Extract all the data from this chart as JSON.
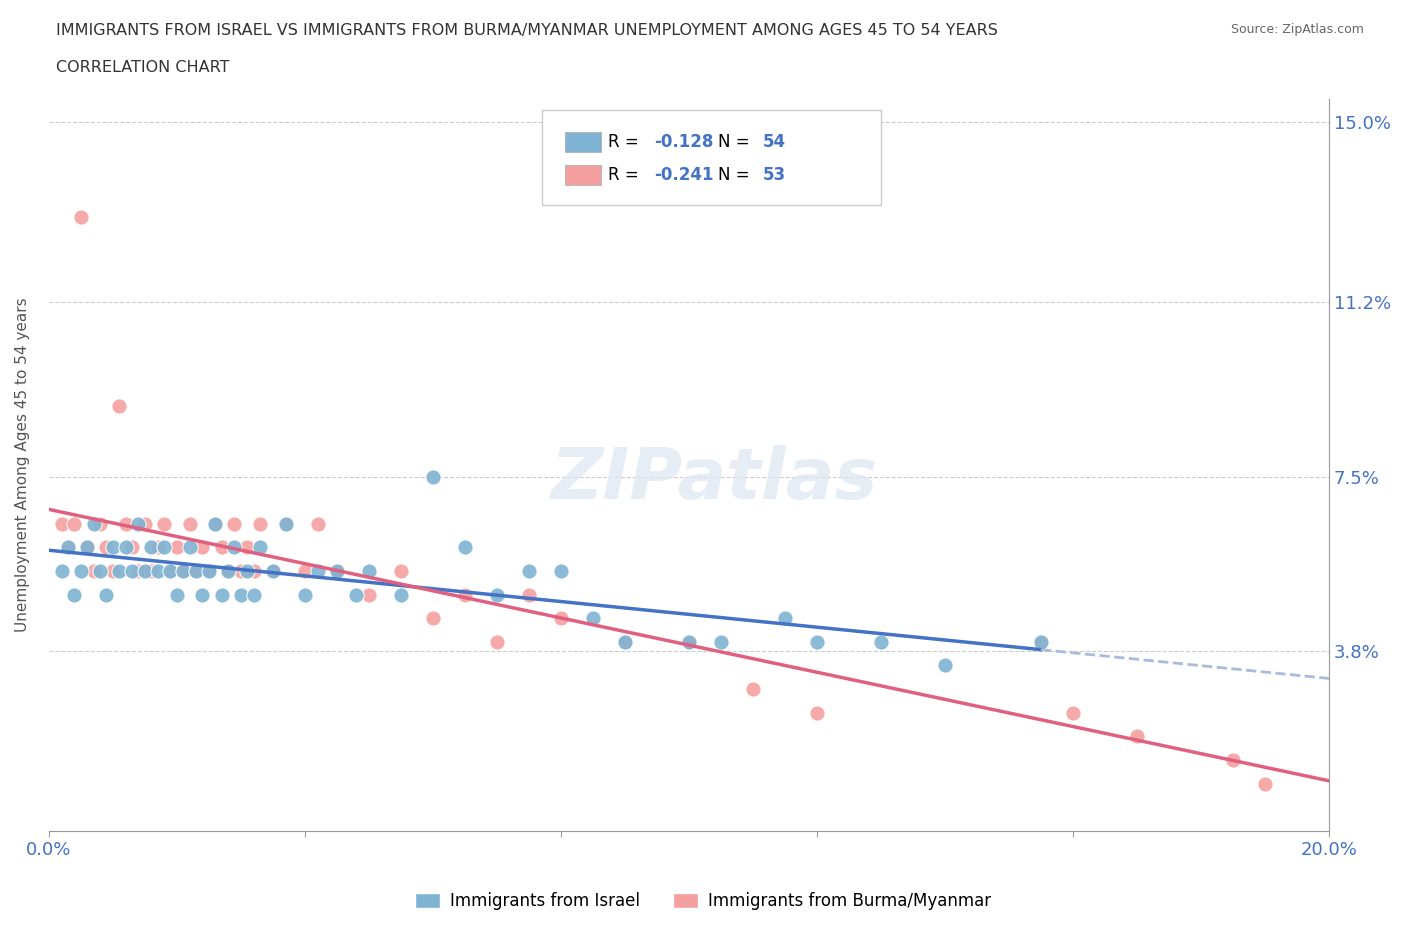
{
  "title_line1": "IMMIGRANTS FROM ISRAEL VS IMMIGRANTS FROM BURMA/MYANMAR UNEMPLOYMENT AMONG AGES 45 TO 54 YEARS",
  "title_line2": "CORRELATION CHART",
  "source_text": "Source: ZipAtlas.com",
  "ylabel": "Unemployment Among Ages 45 to 54 years",
  "xlim": [
    0.0,
    0.2
  ],
  "ylim": [
    0.0,
    0.155
  ],
  "ytick_positions": [
    0.0,
    0.038,
    0.075,
    0.112,
    0.15
  ],
  "ytick_labels": [
    "",
    "3.8%",
    "7.5%",
    "11.2%",
    "15.0%"
  ],
  "color_israel": "#7fb3d3",
  "color_burma": "#f4a0a0",
  "color_israel_line": "#4472c4",
  "color_burma_line": "#e06080",
  "legend_r_israel": "R = -0.128",
  "legend_n_israel": "N = 54",
  "legend_r_burma": "R = -0.241",
  "legend_n_burma": "N = 53",
  "watermark": "ZIPatlas",
  "grid_color": "#cccccc",
  "background_color": "#ffffff",
  "israel_x": [
    0.002,
    0.003,
    0.004,
    0.005,
    0.006,
    0.007,
    0.008,
    0.009,
    0.01,
    0.011,
    0.012,
    0.013,
    0.014,
    0.015,
    0.016,
    0.017,
    0.018,
    0.019,
    0.02,
    0.021,
    0.022,
    0.023,
    0.024,
    0.025,
    0.026,
    0.027,
    0.028,
    0.029,
    0.03,
    0.031,
    0.032,
    0.033,
    0.035,
    0.037,
    0.04,
    0.042,
    0.045,
    0.048,
    0.05,
    0.055,
    0.06,
    0.065,
    0.07,
    0.075,
    0.08,
    0.085,
    0.09,
    0.1,
    0.105,
    0.115,
    0.12,
    0.13,
    0.14,
    0.155
  ],
  "israel_y": [
    0.055,
    0.06,
    0.05,
    0.055,
    0.06,
    0.065,
    0.055,
    0.05,
    0.06,
    0.055,
    0.06,
    0.055,
    0.065,
    0.055,
    0.06,
    0.055,
    0.06,
    0.055,
    0.05,
    0.055,
    0.06,
    0.055,
    0.05,
    0.055,
    0.065,
    0.05,
    0.055,
    0.06,
    0.05,
    0.055,
    0.05,
    0.06,
    0.055,
    0.065,
    0.05,
    0.055,
    0.055,
    0.05,
    0.055,
    0.05,
    0.075,
    0.06,
    0.05,
    0.055,
    0.055,
    0.045,
    0.04,
    0.04,
    0.04,
    0.045,
    0.04,
    0.04,
    0.035,
    0.04
  ],
  "burma_x": [
    0.002,
    0.003,
    0.004,
    0.005,
    0.006,
    0.007,
    0.008,
    0.009,
    0.01,
    0.011,
    0.012,
    0.013,
    0.014,
    0.015,
    0.016,
    0.017,
    0.018,
    0.019,
    0.02,
    0.021,
    0.022,
    0.023,
    0.024,
    0.025,
    0.026,
    0.027,
    0.028,
    0.029,
    0.03,
    0.031,
    0.032,
    0.033,
    0.035,
    0.037,
    0.04,
    0.042,
    0.045,
    0.05,
    0.055,
    0.06,
    0.065,
    0.07,
    0.075,
    0.08,
    0.09,
    0.1,
    0.11,
    0.12,
    0.155,
    0.16,
    0.17,
    0.185,
    0.19
  ],
  "burma_y": [
    0.065,
    0.06,
    0.065,
    0.13,
    0.06,
    0.055,
    0.065,
    0.06,
    0.055,
    0.09,
    0.065,
    0.06,
    0.055,
    0.065,
    0.055,
    0.06,
    0.065,
    0.055,
    0.06,
    0.055,
    0.065,
    0.055,
    0.06,
    0.055,
    0.065,
    0.06,
    0.055,
    0.065,
    0.055,
    0.06,
    0.055,
    0.065,
    0.055,
    0.065,
    0.055,
    0.065,
    0.055,
    0.05,
    0.055,
    0.045,
    0.05,
    0.04,
    0.05,
    0.045,
    0.04,
    0.04,
    0.03,
    0.025,
    0.04,
    0.025,
    0.02,
    0.015,
    0.01
  ]
}
